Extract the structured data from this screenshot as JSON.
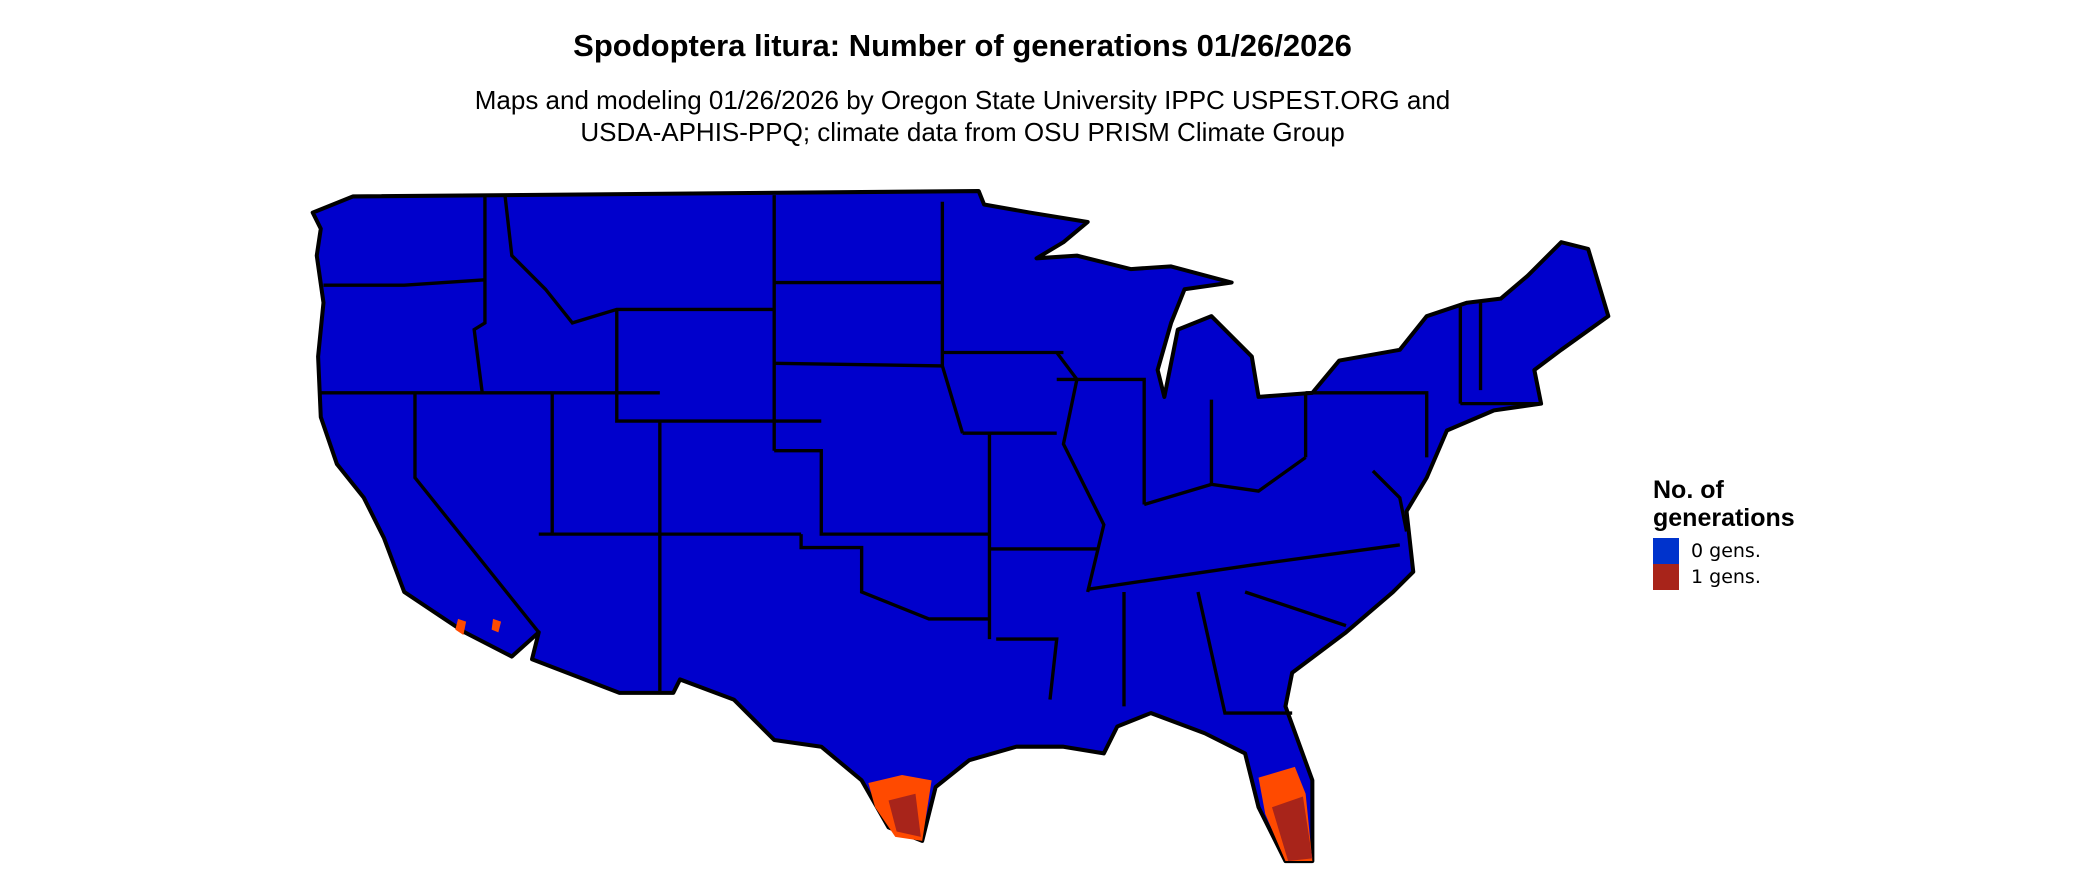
{
  "title": "Spodoptera litura: Number of generations 01/26/2026",
  "subtitle_line1": "Maps and modeling 01/26/2026 by Oregon State University IPPC USPEST.ORG and",
  "subtitle_line2": "USDA-APHIS-PPQ; climate data from OSU PRISM Climate Group",
  "legend": {
    "title_line1": "No. of",
    "title_line2": "generations",
    "items": [
      {
        "label": "0 gens.",
        "color": "#0033cc"
      },
      {
        "label": "1 gens.",
        "color": "#a8241a"
      }
    ]
  },
  "map": {
    "region": "Contiguous United States",
    "base_fill": "#0000cc",
    "border_color": "#000000",
    "areas_with_1_generation": [
      "South Texas",
      "South Florida",
      "Southern California coast (small patches)"
    ],
    "gradient_colors": [
      "#ff4a00",
      "#d9401a",
      "#a8241a"
    ]
  }
}
